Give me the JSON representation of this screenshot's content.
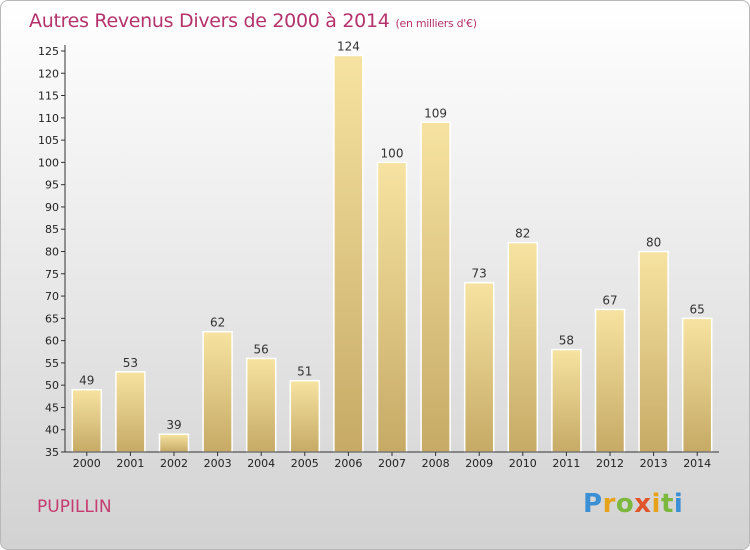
{
  "header": {
    "title": "Autres Revenus Divers de 2000 à 2014",
    "unit": "(en milliers d'€)"
  },
  "footer": {
    "commune": "PUPILLIN",
    "logo": "Proxiti"
  },
  "colors": {
    "title": "#b5336c",
    "bar_light": "#f7e3a1",
    "bar_dark": "#c6aa66",
    "axis": "#333333"
  },
  "chart_data": {
    "type": "bar",
    "title": "Autres Revenus Divers de 2000 à 2014",
    "subtitle": "(en milliers d'€)",
    "xlabel": "",
    "ylabel": "",
    "categories": [
      "2000",
      "2001",
      "2002",
      "2003",
      "2004",
      "2005",
      "2006",
      "2007",
      "2008",
      "2009",
      "2010",
      "2011",
      "2012",
      "2013",
      "2014"
    ],
    "values": [
      49,
      53,
      39,
      62,
      56,
      51,
      124,
      100,
      109,
      73,
      82,
      58,
      67,
      80,
      65
    ],
    "ylim": [
      35,
      125
    ],
    "yticks": [
      35,
      40,
      45,
      50,
      55,
      60,
      65,
      70,
      75,
      80,
      85,
      90,
      95,
      100,
      105,
      110,
      115,
      120,
      125
    ],
    "grid": false,
    "data_labels": true
  }
}
